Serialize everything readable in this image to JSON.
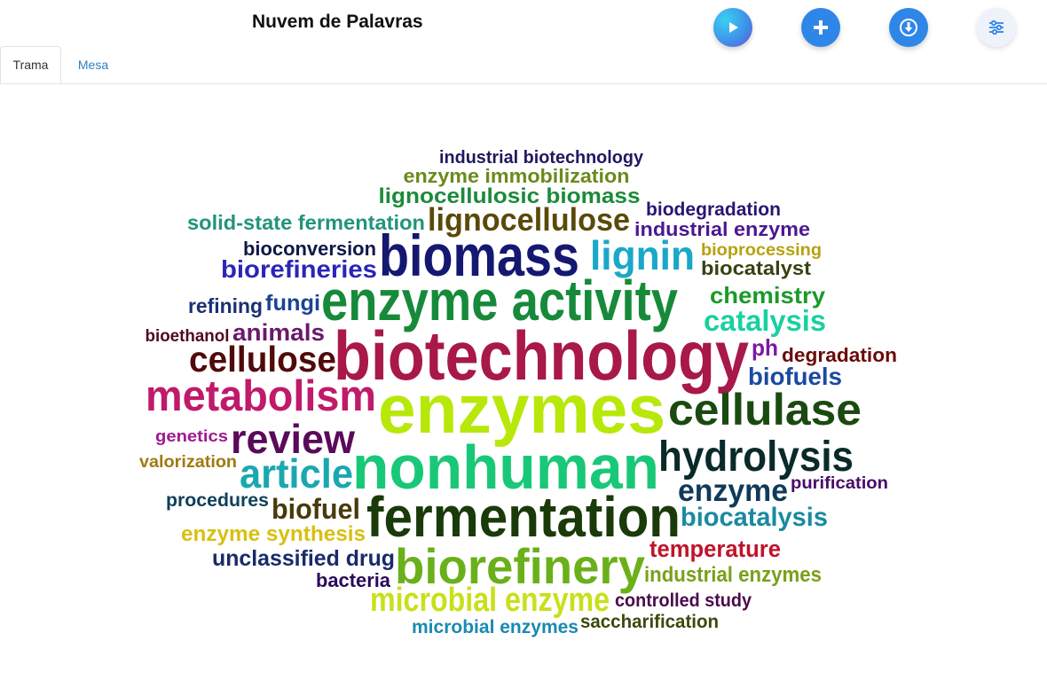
{
  "header": {
    "title": "Nuvem de Palavras"
  },
  "toolbar": {
    "buttons": [
      {
        "name": "play",
        "icon": "play-icon"
      },
      {
        "name": "add",
        "icon": "plus-icon"
      },
      {
        "name": "download",
        "icon": "download-icon"
      },
      {
        "name": "settings",
        "icon": "sliders-icon"
      }
    ]
  },
  "tabs": [
    {
      "label": "Trama",
      "active": true
    },
    {
      "label": "Mesa",
      "active": false
    }
  ],
  "wordcloud": {
    "words": [
      {
        "text": "industrial biotechnology",
        "color": "#1f1a5e"
      },
      {
        "text": "enzyme immobilization",
        "color": "#6a8a1c"
      },
      {
        "text": "lignocellulosic biomass",
        "color": "#1c8a3a"
      },
      {
        "text": "lignocellulose",
        "color": "#5a4a0a"
      },
      {
        "text": "biodegradation",
        "color": "#2a1570"
      },
      {
        "text": "solid-state fermentation",
        "color": "#22947a"
      },
      {
        "text": "industrial enzyme",
        "color": "#4a1890"
      },
      {
        "text": "bioconversion",
        "color": "#0e1848"
      },
      {
        "text": "biomass",
        "color": "#141870"
      },
      {
        "text": "lignin",
        "color": "#1aa8c8"
      },
      {
        "text": "bioprocessing",
        "color": "#b8a010"
      },
      {
        "text": "biorefineries",
        "color": "#2a26b8"
      },
      {
        "text": "biocatalyst",
        "color": "#384210"
      },
      {
        "text": "refining",
        "color": "#1a3070"
      },
      {
        "text": "fungi",
        "color": "#1a4490"
      },
      {
        "text": "enzyme activity",
        "color": "#168a3a"
      },
      {
        "text": "chemistry",
        "color": "#1a9a2a"
      },
      {
        "text": "catalysis",
        "color": "#1ad0a0"
      },
      {
        "text": "bioethanol",
        "color": "#500a20"
      },
      {
        "text": "animals",
        "color": "#6a1a6a"
      },
      {
        "text": "biotechnology",
        "color": "#a8184a"
      },
      {
        "text": "ph",
        "color": "#7a1aa0"
      },
      {
        "text": "degradation",
        "color": "#6a0a0a"
      },
      {
        "text": "cellulose",
        "color": "#500a0a"
      },
      {
        "text": "biofuels",
        "color": "#1a4aa0"
      },
      {
        "text": "metabolism",
        "color": "#c01a6a"
      },
      {
        "text": "enzymes",
        "color": "#b8e80a"
      },
      {
        "text": "cellulase",
        "color": "#1a4a10"
      },
      {
        "text": "genetics",
        "color": "#a01a90"
      },
      {
        "text": "review",
        "color": "#5a0a5a"
      },
      {
        "text": "hydrolysis",
        "color": "#0a2a2a"
      },
      {
        "text": "valorization",
        "color": "#a07a10"
      },
      {
        "text": "article",
        "color": "#1aa8b0"
      },
      {
        "text": "nonhuman",
        "color": "#18c878"
      },
      {
        "text": "enzyme",
        "color": "#103a5a"
      },
      {
        "text": "purification",
        "color": "#4a0a6a"
      },
      {
        "text": "procedures",
        "color": "#10405a"
      },
      {
        "text": "biofuel",
        "color": "#4a3a0a"
      },
      {
        "text": "fermentation",
        "color": "#1a3a0a"
      },
      {
        "text": "biocatalysis",
        "color": "#1a8aa0"
      },
      {
        "text": "enzyme synthesis",
        "color": "#d8c010"
      },
      {
        "text": "temperature",
        "color": "#c0142a"
      },
      {
        "text": "unclassified drug",
        "color": "#1a2a6a"
      },
      {
        "text": "biorefinery",
        "color": "#6ab01a"
      },
      {
        "text": "industrial enzymes",
        "color": "#7aa01a"
      },
      {
        "text": "bacteria",
        "color": "#2a0a5a"
      },
      {
        "text": "microbial enzyme",
        "color": "#c8e01a"
      },
      {
        "text": "controlled study",
        "color": "#4a0a4a"
      },
      {
        "text": "saccharification",
        "color": "#3a4a0a"
      },
      {
        "text": "microbial enzymes",
        "color": "#1a8ab0"
      }
    ]
  }
}
